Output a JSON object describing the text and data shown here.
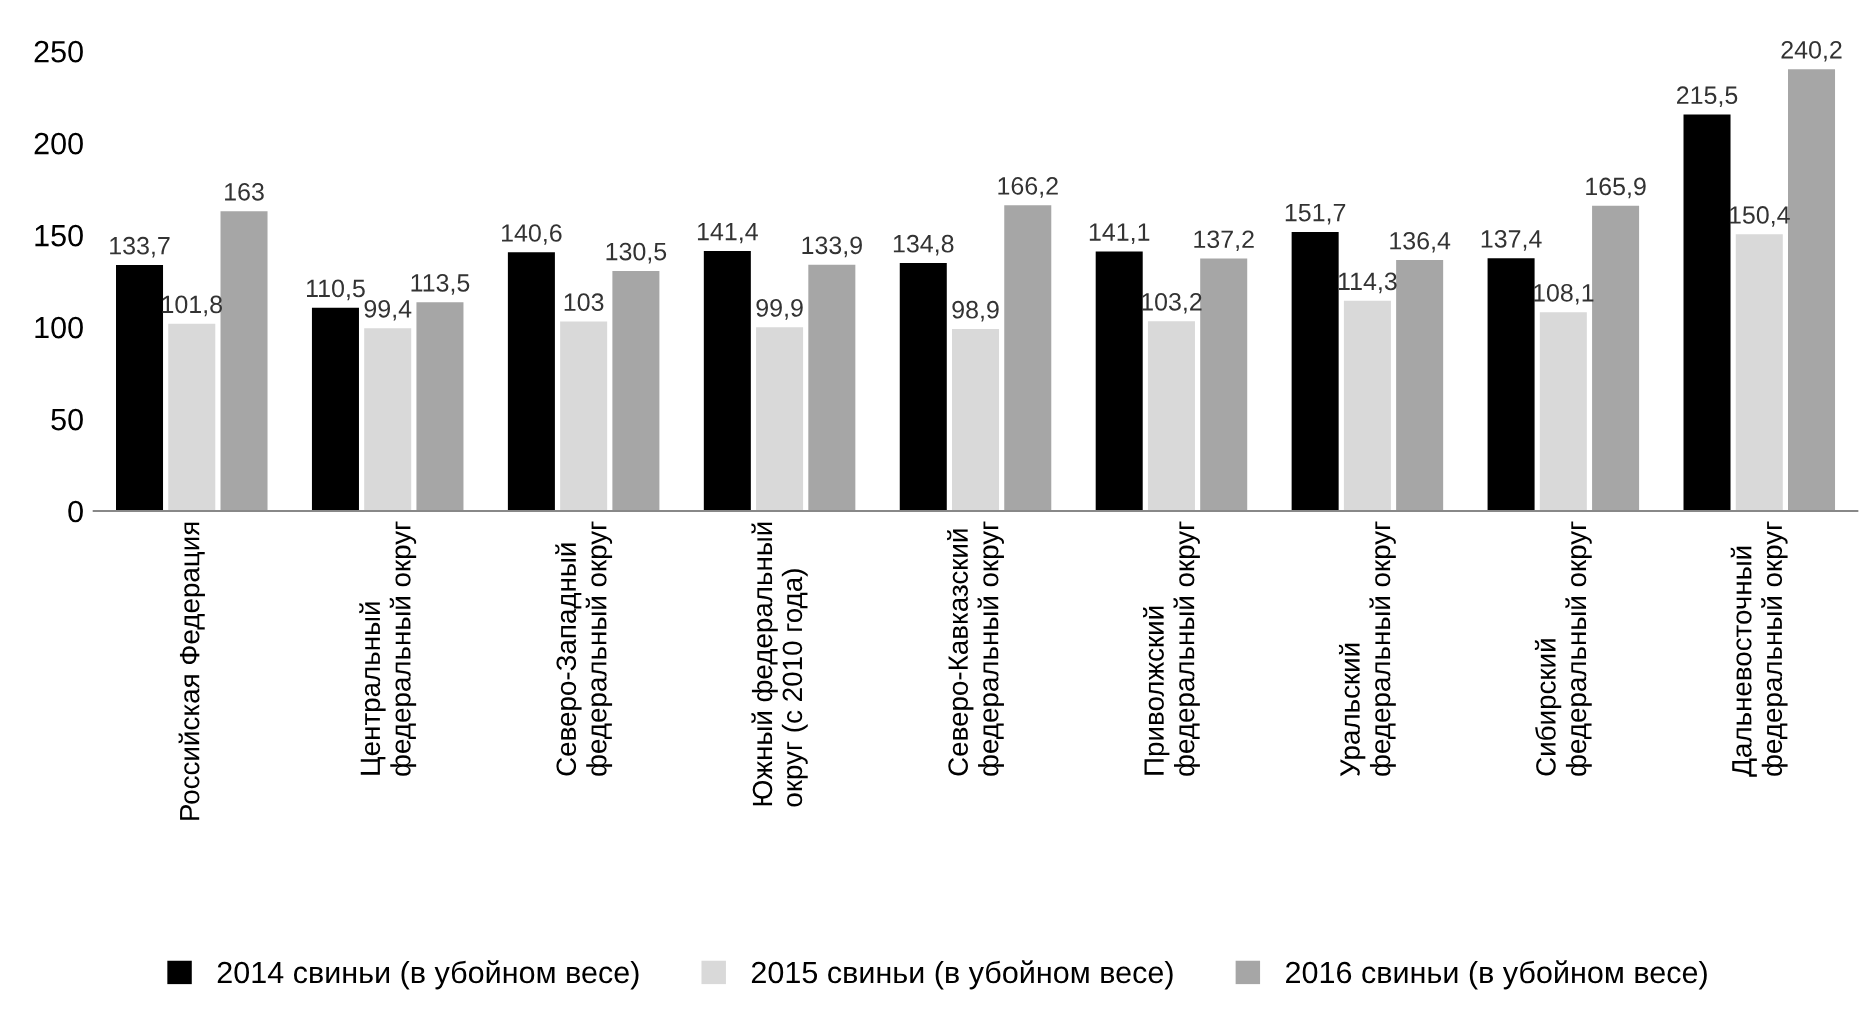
{
  "chart_data": {
    "type": "bar",
    "categories": [
      "Российская Федерация",
      "Центральный федеральный округ",
      "Северо-Западный федеральный округ",
      "Южный федеральный округ (с 2010 года)",
      "Северо-Кавказский федеральный округ",
      "Приволжский федеральный округ",
      "Уральский федеральный округ",
      "Сибирский федеральный округ",
      "Дальневосточный федеральный округ"
    ],
    "series": [
      {
        "name": "2014 свиньи (в убойном весе)",
        "color": "#000000",
        "values": [
          133.7,
          110.5,
          140.6,
          141.4,
          134.8,
          141.1,
          151.7,
          137.4,
          215.5
        ],
        "value_labels": [
          "133,7",
          "110,5",
          "140,6",
          "141,4",
          "134,8",
          "141,1",
          "151,7",
          "137,4",
          "215,5"
        ]
      },
      {
        "name": "2015 свиньи (в убойном весе)",
        "color": "#d9d9d9",
        "values": [
          101.8,
          99.4,
          103,
          99.9,
          98.9,
          103.2,
          114.3,
          108.1,
          150.4
        ],
        "value_labels": [
          "101,8",
          "99,4",
          "103",
          "99,9",
          "98,9",
          "103,2",
          "114,3",
          "108,1",
          "150,4"
        ]
      },
      {
        "name": "2016 свиньи (в убойном весе)",
        "color": "#a6a6a6",
        "values": [
          163,
          113.5,
          130.5,
          133.9,
          166.2,
          137.2,
          136.4,
          165.9,
          240.2
        ],
        "value_labels": [
          "163",
          "113,5",
          "130,5",
          "133,9",
          "166,2",
          "137,2",
          "136,4",
          "165,9",
          "240,2"
        ]
      }
    ],
    "ylim": [
      0,
      250
    ],
    "yticks": [
      0,
      50,
      100,
      150,
      200,
      250
    ],
    "legend": "bottom",
    "grid": false
  }
}
